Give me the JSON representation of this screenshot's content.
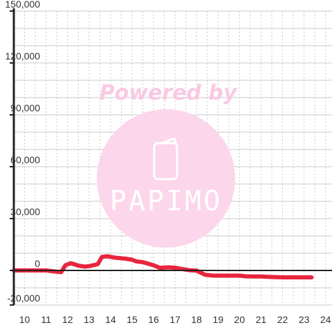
{
  "chart_data": {
    "type": "line",
    "title": "",
    "xlabel": "",
    "ylabel": "",
    "xlim": [
      9.5,
      24.3
    ],
    "ylim": [
      -20000,
      150000
    ],
    "x_ticks": [
      {
        "value": 10,
        "label": "10"
      },
      {
        "value": 11,
        "label": "11"
      },
      {
        "value": 12,
        "label": "12"
      },
      {
        "value": 13,
        "label": "13"
      },
      {
        "value": 14,
        "label": "14"
      },
      {
        "value": 15,
        "label": "15"
      },
      {
        "value": 16,
        "label": "16"
      },
      {
        "value": 17,
        "label": "17"
      },
      {
        "value": 18,
        "label": "18"
      },
      {
        "value": 19,
        "label": "19"
      },
      {
        "value": 20,
        "label": "20"
      },
      {
        "value": 21,
        "label": "21"
      },
      {
        "value": 22,
        "label": "22"
      },
      {
        "value": 23,
        "label": "23"
      },
      {
        "value": 24,
        "label": "24"
      }
    ],
    "y_ticks": [
      {
        "value": 150000,
        "label": "150,000"
      },
      {
        "value": 120000,
        "label": "120,000"
      },
      {
        "value": 90000,
        "label": "90,000"
      },
      {
        "value": 60000,
        "label": "60,000"
      },
      {
        "value": 30000,
        "label": "30,000"
      },
      {
        "value": 0,
        "label": "0"
      },
      {
        "value": -20000,
        "label": "-20,000"
      }
    ],
    "y_minor_step": 10000,
    "grid": true,
    "series": [
      {
        "color": "#e8253c",
        "points": [
          [
            9.5,
            0
          ],
          [
            10.5,
            0
          ],
          [
            11.0,
            0
          ],
          [
            11.4,
            -600
          ],
          [
            11.7,
            -1000
          ],
          [
            11.9,
            3000
          ],
          [
            12.15,
            4200
          ],
          [
            12.5,
            2800
          ],
          [
            12.8,
            2200
          ],
          [
            13.0,
            2500
          ],
          [
            13.4,
            3600
          ],
          [
            13.6,
            7800
          ],
          [
            13.85,
            8200
          ],
          [
            14.2,
            7400
          ],
          [
            14.7,
            6800
          ],
          [
            15.0,
            6200
          ],
          [
            15.2,
            5200
          ],
          [
            15.5,
            4800
          ],
          [
            16.0,
            3000
          ],
          [
            16.3,
            1500
          ],
          [
            16.7,
            1800
          ],
          [
            17.0,
            1600
          ],
          [
            17.3,
            900
          ],
          [
            17.7,
            100
          ],
          [
            18.0,
            -100
          ],
          [
            18.4,
            -2500
          ],
          [
            18.8,
            -3000
          ],
          [
            19.0,
            -3000
          ],
          [
            19.5,
            -3000
          ],
          [
            20.0,
            -3000
          ],
          [
            20.3,
            -3400
          ],
          [
            20.8,
            -3500
          ],
          [
            21.0,
            -3500
          ],
          [
            21.5,
            -3800
          ],
          [
            22.0,
            -4000
          ],
          [
            22.5,
            -4000
          ],
          [
            23.0,
            -4000
          ],
          [
            23.35,
            -4000
          ]
        ]
      }
    ]
  },
  "watermark": {
    "text": "Powered by",
    "logo_text": "PAPIMO",
    "color": "#fcd6ea",
    "text_color": "#f9c9e3"
  }
}
